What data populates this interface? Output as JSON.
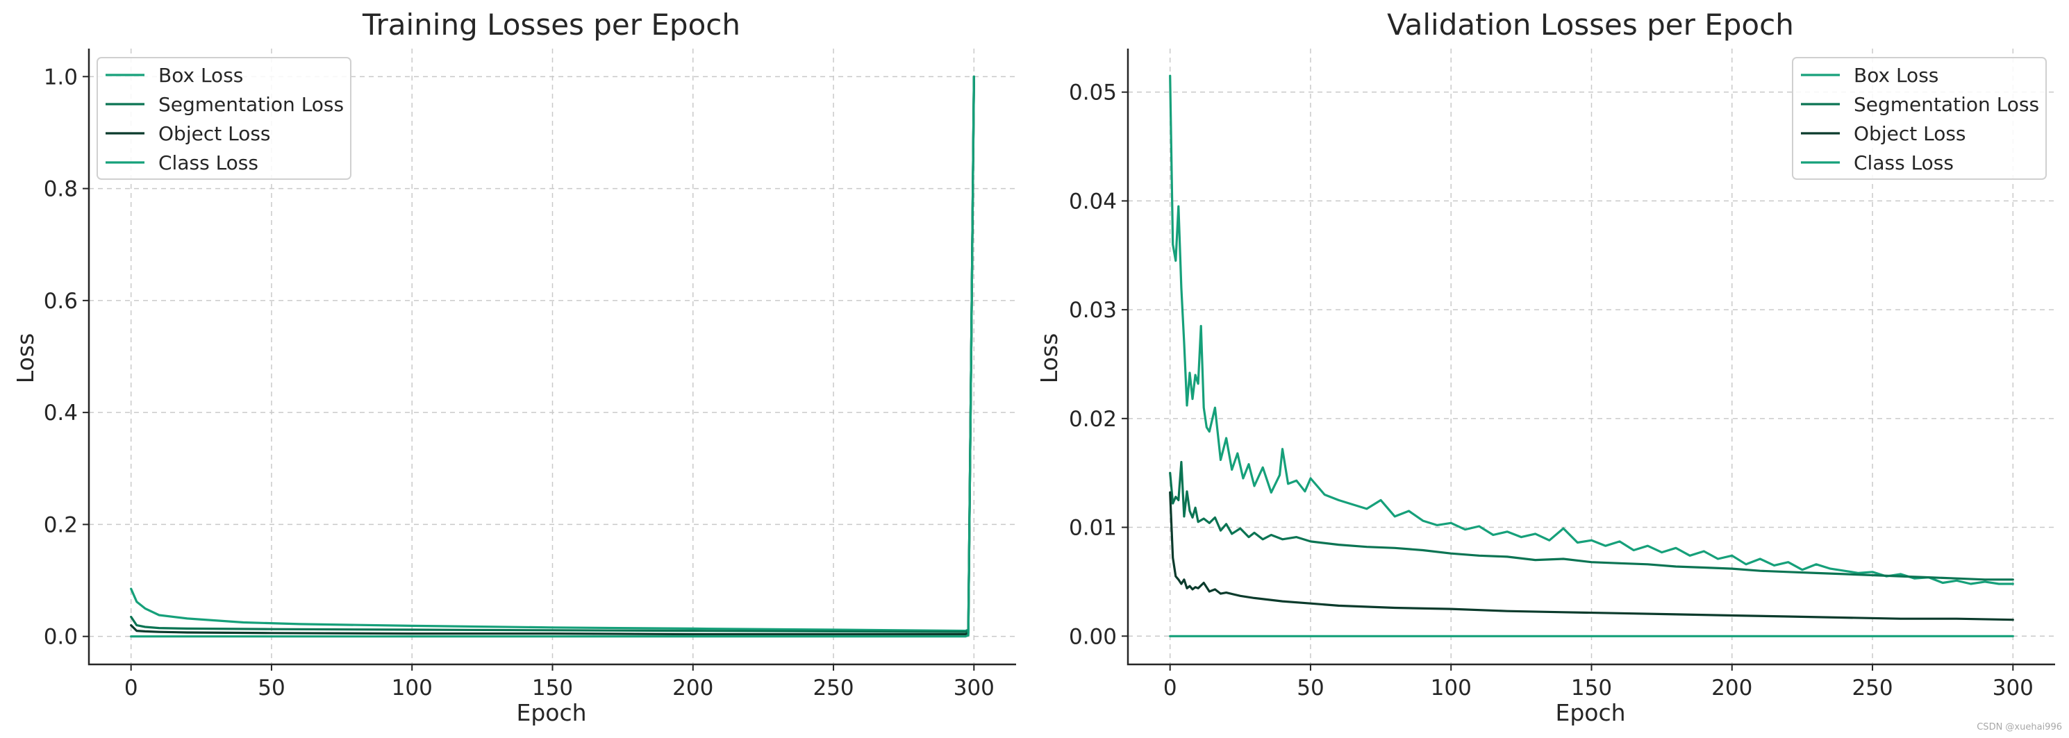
{
  "chart_data": [
    {
      "type": "line",
      "title": "Training Losses per Epoch",
      "xlabel": "Epoch",
      "ylabel": "Loss",
      "xlim": [
        -15,
        315
      ],
      "ylim": [
        -0.05,
        1.05
      ],
      "xticks": [
        0,
        50,
        100,
        150,
        200,
        250,
        300
      ],
      "yticks": [
        0.0,
        0.2,
        0.4,
        0.6,
        0.8,
        1.0
      ],
      "ytick_decimals": 1,
      "grid": true,
      "legend_position": "top-left",
      "series": [
        {
          "name": "Box Loss",
          "color": "#16a07a",
          "x": [
            0,
            2,
            5,
            10,
            20,
            40,
            60,
            100,
            150,
            200,
            250,
            297,
            298,
            299,
            300
          ],
          "y": [
            0.085,
            0.062,
            0.05,
            0.038,
            0.032,
            0.025,
            0.022,
            0.019,
            0.016,
            0.014,
            0.012,
            0.01,
            0.012,
            0.5,
            1.0
          ]
        },
        {
          "name": "Segmentation Loss",
          "color": "#0b7453",
          "x": [
            0,
            2,
            5,
            10,
            20,
            50,
            100,
            150,
            200,
            250,
            297,
            298,
            299,
            300
          ],
          "y": [
            0.035,
            0.02,
            0.017,
            0.015,
            0.014,
            0.013,
            0.012,
            0.011,
            0.01,
            0.009,
            0.008,
            0.01,
            0.5,
            0.99
          ]
        },
        {
          "name": "Object Loss",
          "color": "#0b3b2c",
          "x": [
            0,
            2,
            5,
            10,
            20,
            50,
            100,
            150,
            200,
            250,
            297,
            298,
            299,
            300
          ],
          "y": [
            0.02,
            0.01,
            0.009,
            0.008,
            0.007,
            0.006,
            0.005,
            0.005,
            0.004,
            0.004,
            0.004,
            0.006,
            0.5,
            1.0
          ]
        },
        {
          "name": "Class Loss",
          "color": "#16a07a",
          "x": [
            0,
            297,
            298,
            299,
            300
          ],
          "y": [
            0.0,
            0.0,
            0.002,
            0.5,
            1.0
          ]
        }
      ]
    },
    {
      "type": "line",
      "title": "Validation Losses per Epoch",
      "xlabel": "Epoch",
      "ylabel": "Loss",
      "xlim": [
        -15,
        315
      ],
      "ylim": [
        -0.0026,
        0.054
      ],
      "xticks": [
        0,
        50,
        100,
        150,
        200,
        250,
        300
      ],
      "yticks": [
        0.0,
        0.01,
        0.02,
        0.03,
        0.04,
        0.05
      ],
      "ytick_decimals": 2,
      "grid": true,
      "legend_position": "top-right",
      "series": [
        {
          "name": "Box Loss",
          "color": "#16a07a",
          "x": [
            0,
            1,
            2,
            3,
            4,
            5,
            6,
            7,
            8,
            9,
            10,
            11,
            12,
            13,
            14,
            16,
            18,
            20,
            22,
            24,
            26,
            28,
            30,
            33,
            36,
            39,
            40,
            42,
            45,
            48,
            50,
            55,
            60,
            65,
            70,
            75,
            80,
            85,
            90,
            95,
            100,
            105,
            110,
            115,
            120,
            125,
            130,
            135,
            140,
            145,
            150,
            155,
            160,
            165,
            170,
            175,
            180,
            185,
            190,
            195,
            200,
            205,
            210,
            215,
            220,
            225,
            230,
            235,
            240,
            245,
            250,
            255,
            260,
            265,
            270,
            275,
            280,
            285,
            290,
            295,
            300
          ],
          "y": [
            0.0515,
            0.036,
            0.0345,
            0.0395,
            0.032,
            0.027,
            0.0212,
            0.0242,
            0.0218,
            0.024,
            0.0232,
            0.0285,
            0.021,
            0.0192,
            0.0188,
            0.021,
            0.0162,
            0.0182,
            0.0153,
            0.0168,
            0.0145,
            0.0158,
            0.0138,
            0.0155,
            0.0132,
            0.0148,
            0.0172,
            0.014,
            0.0143,
            0.0133,
            0.0145,
            0.013,
            0.0125,
            0.0121,
            0.0117,
            0.0125,
            0.011,
            0.0115,
            0.0106,
            0.0102,
            0.0104,
            0.0098,
            0.0101,
            0.0093,
            0.0096,
            0.0091,
            0.0094,
            0.0088,
            0.0099,
            0.0086,
            0.0088,
            0.0083,
            0.0087,
            0.0079,
            0.0083,
            0.0077,
            0.0081,
            0.0074,
            0.0078,
            0.0071,
            0.0074,
            0.0066,
            0.0071,
            0.0065,
            0.0068,
            0.0061,
            0.0066,
            0.0062,
            0.006,
            0.0058,
            0.0059,
            0.0055,
            0.0057,
            0.0053,
            0.0054,
            0.0049,
            0.0051,
            0.0048,
            0.005,
            0.0048,
            0.0048
          ]
        },
        {
          "name": "Segmentation Loss",
          "color": "#0b7453",
          "x": [
            0,
            1,
            2,
            3,
            4,
            5,
            6,
            7,
            8,
            9,
            10,
            12,
            14,
            16,
            18,
            20,
            22,
            25,
            28,
            30,
            33,
            36,
            40,
            45,
            50,
            60,
            70,
            80,
            90,
            100,
            110,
            120,
            130,
            140,
            150,
            160,
            170,
            180,
            190,
            200,
            210,
            220,
            230,
            240,
            250,
            260,
            270,
            280,
            290,
            300
          ],
          "y": [
            0.015,
            0.0122,
            0.0128,
            0.0125,
            0.016,
            0.011,
            0.0133,
            0.0115,
            0.0109,
            0.0118,
            0.0105,
            0.0108,
            0.0104,
            0.0109,
            0.0097,
            0.0103,
            0.0094,
            0.0099,
            0.0091,
            0.0095,
            0.0089,
            0.0093,
            0.0089,
            0.0091,
            0.0087,
            0.0084,
            0.0082,
            0.0081,
            0.0079,
            0.0076,
            0.0074,
            0.0073,
            0.007,
            0.0071,
            0.0068,
            0.0067,
            0.0066,
            0.0064,
            0.0063,
            0.0062,
            0.006,
            0.0059,
            0.0058,
            0.0057,
            0.0056,
            0.0055,
            0.0054,
            0.0053,
            0.0052,
            0.0052
          ]
        },
        {
          "name": "Object Loss",
          "color": "#0b3b2c",
          "x": [
            0,
            1,
            2,
            3,
            4,
            5,
            6,
            7,
            8,
            9,
            10,
            12,
            14,
            16,
            18,
            20,
            25,
            30,
            40,
            50,
            60,
            80,
            100,
            120,
            140,
            160,
            180,
            200,
            220,
            240,
            260,
            280,
            300
          ],
          "y": [
            0.0132,
            0.0072,
            0.0055,
            0.0052,
            0.0048,
            0.0052,
            0.0044,
            0.0046,
            0.0043,
            0.0045,
            0.0044,
            0.0049,
            0.0041,
            0.0043,
            0.0039,
            0.004,
            0.0037,
            0.0035,
            0.0032,
            0.003,
            0.0028,
            0.0026,
            0.0025,
            0.0023,
            0.0022,
            0.0021,
            0.002,
            0.0019,
            0.0018,
            0.0017,
            0.0016,
            0.0016,
            0.0015
          ]
        },
        {
          "name": "Class Loss",
          "color": "#16a07a",
          "x": [
            0,
            300
          ],
          "y": [
            0.0,
            0.0
          ]
        }
      ]
    }
  ],
  "watermark": "CSDN @xuehai996"
}
